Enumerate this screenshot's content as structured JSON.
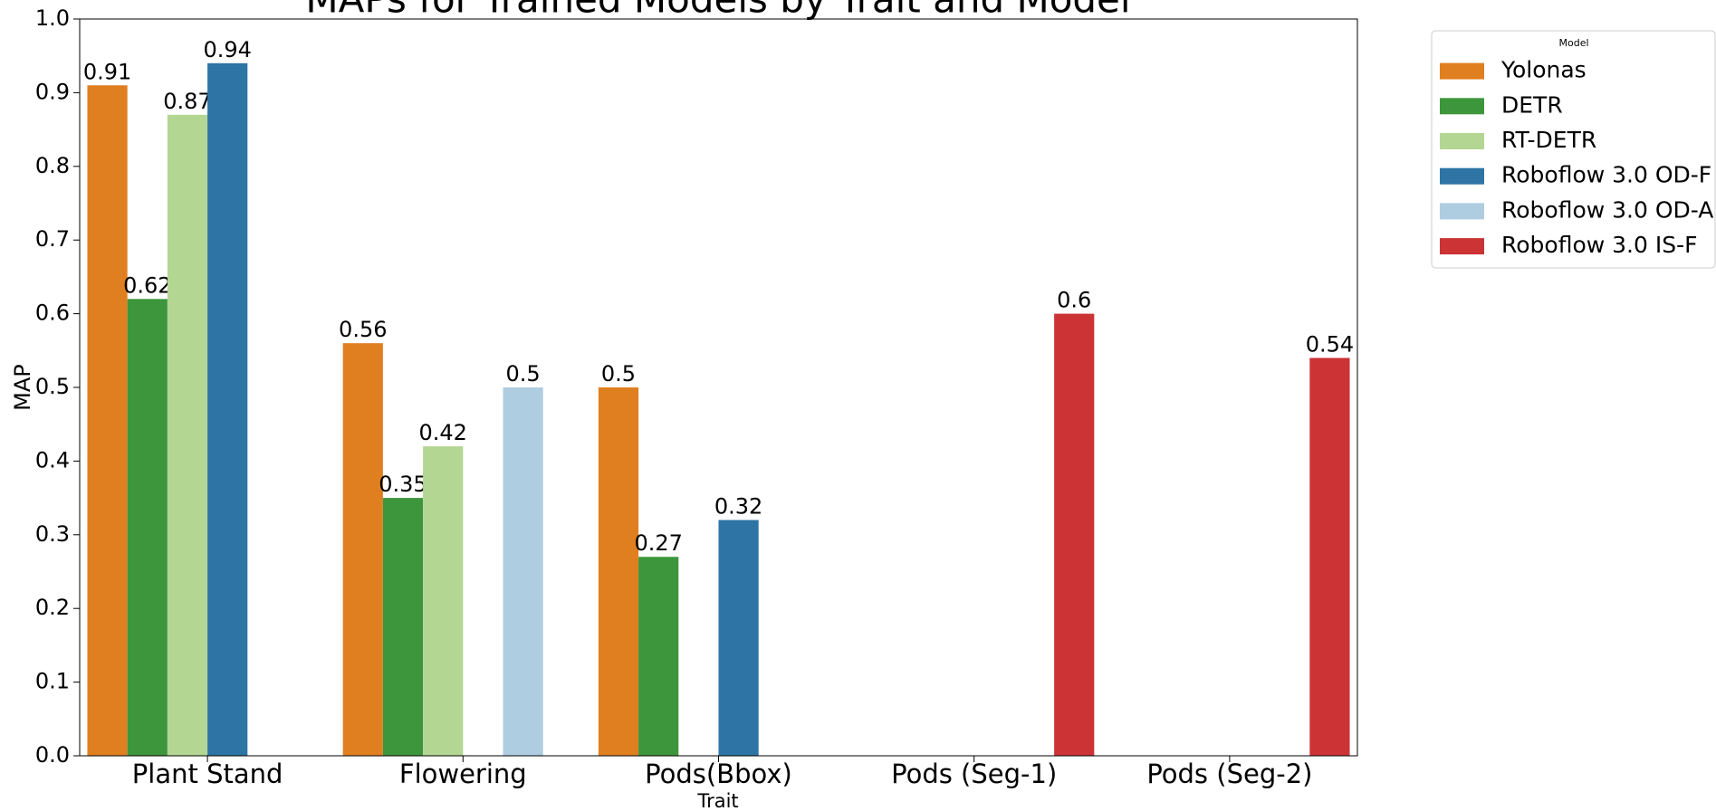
{
  "chart_data": {
    "type": "bar",
    "title": "MAPs for Trained Models by Trait and Model",
    "x_label": "Trait",
    "y_label": "MAP",
    "legend_title": "Model",
    "legend_position": "outside-right",
    "categories": [
      "Plant Stand",
      "Flowering",
      "Pods(Bbox)",
      "Pods (Seg-1)",
      "Pods (Seg-2)"
    ],
    "series": [
      {
        "name": "Yolonas",
        "color": "#e07f1f",
        "values": [
          0.91,
          0.56,
          0.5,
          null,
          null
        ]
      },
      {
        "name": "DETR",
        "color": "#3d963b",
        "values": [
          0.62,
          0.35,
          0.27,
          null,
          null
        ]
      },
      {
        "name": "RT-DETR",
        "color": "#b3d693",
        "values": [
          0.87,
          0.42,
          null,
          null,
          null
        ]
      },
      {
        "name": "Roboflow 3.0 OD-F",
        "color": "#2e74a5",
        "values": [
          0.94,
          null,
          0.32,
          null,
          null
        ]
      },
      {
        "name": "Roboflow 3.0 OD-A",
        "color": "#aecde1",
        "values": [
          null,
          0.5,
          null,
          null,
          null
        ]
      },
      {
        "name": "Roboflow 3.0 IS-F",
        "color": "#cb3335",
        "values": [
          null,
          null,
          null,
          0.6,
          0.54
        ]
      }
    ],
    "ylim": [
      0,
      1
    ],
    "yticks": [
      {
        "value": 0,
        "label": "0.0"
      },
      0.1,
      0.2,
      0.3,
      0.4,
      0.5,
      0.6,
      0.7,
      0.8,
      0.9,
      {
        "value": 1,
        "label": "1.0"
      }
    ],
    "grid": false
  }
}
